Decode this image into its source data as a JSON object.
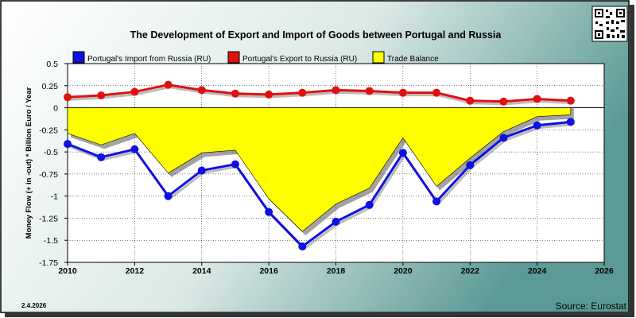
{
  "chart_data": {
    "type": "line",
    "title": "The Development of Export and Import of Goods between Portugal and Russia",
    "ylabel": "Money Flow (+ in -out) * Billion Euro / Year",
    "xlabel": "",
    "xlim": [
      2010,
      2026
    ],
    "ylim": [
      -1.75,
      0.5
    ],
    "x_ticks": [
      "2010",
      "2012",
      "2014",
      "2016",
      "2018",
      "2020",
      "2022",
      "2024",
      "2026"
    ],
    "y_ticks": [
      "0.5",
      "0.25",
      "0",
      "-0.25",
      "-0.5",
      "-0.75",
      "-1",
      "-1.25",
      "-1.5",
      "-1.75"
    ],
    "grid": true,
    "legend_position": "top",
    "x": [
      2010,
      2011,
      2012,
      2013,
      2014,
      2015,
      2016,
      2017,
      2018,
      2019,
      2020,
      2021,
      2022,
      2023,
      2024,
      2025
    ],
    "series": [
      {
        "name": "Portugal's Import from Russia (RU)",
        "color": "#1010e0",
        "values": [
          -0.41,
          -0.56,
          -0.47,
          -1.0,
          -0.71,
          -0.64,
          -1.18,
          -1.57,
          -1.29,
          -1.1,
          -0.51,
          -1.06,
          -0.65,
          -0.34,
          -0.2,
          -0.16
        ]
      },
      {
        "name": "Portugal's Export to Russia (RU)",
        "color": "#e01010",
        "values": [
          0.12,
          0.14,
          0.18,
          0.26,
          0.2,
          0.16,
          0.15,
          0.17,
          0.2,
          0.19,
          0.17,
          0.17,
          0.08,
          0.07,
          0.1,
          0.08
        ]
      },
      {
        "name": "Trade Balance",
        "color": "#ffff00",
        "values": [
          -0.29,
          -0.42,
          -0.29,
          -0.74,
          -0.51,
          -0.48,
          -1.03,
          -1.4,
          -1.09,
          -0.91,
          -0.34,
          -0.89,
          -0.57,
          -0.27,
          -0.1,
          -0.08
        ]
      }
    ]
  },
  "date_label": "2.4.2026",
  "source_label": "Source: Eurostat",
  "qr_icon": "qr-code-icon"
}
